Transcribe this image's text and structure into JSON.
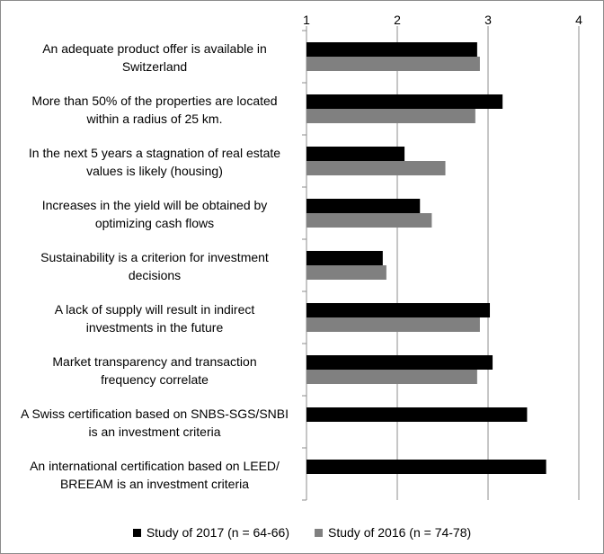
{
  "chart_data": {
    "type": "bar",
    "orientation": "horizontal",
    "xlim": [
      1,
      4
    ],
    "ticks": [
      "1",
      "2",
      "3",
      "4"
    ],
    "grid": true,
    "legend_position": "bottom",
    "categories": [
      [
        "An adequate product offer is available in",
        "Switzerland"
      ],
      [
        "More than 50% of the properties are located",
        "within a radius of 25 km."
      ],
      [
        "In the next 5 years a stagnation of real estate",
        "values is likely (housing)"
      ],
      [
        "Increases in the yield will be obtained by",
        "optimizing cash flows"
      ],
      [
        "Sustainability is a criterion for investment",
        "decisions"
      ],
      [
        "A lack of supply will result in indirect",
        "investments in the future"
      ],
      [
        "Market transparency and transaction",
        "frequency correlate"
      ],
      [
        "A Swiss certification based on SNBS-SGS/SNBI",
        "is an investment criteria"
      ],
      [
        "An international certification based on LEED/",
        "BREEAM is an investment criteria"
      ]
    ],
    "series": [
      {
        "name": "Study of 2017 (n = 64-66)",
        "color": "#000000",
        "values": [
          2.88,
          3.16,
          2.08,
          2.25,
          1.84,
          3.02,
          3.05,
          3.43,
          3.64
        ]
      },
      {
        "name": "Study of 2016 (n = 74-78)",
        "color": "#808080",
        "values": [
          2.91,
          2.86,
          2.53,
          2.38,
          1.88,
          2.91,
          2.88,
          null,
          null
        ]
      }
    ]
  }
}
